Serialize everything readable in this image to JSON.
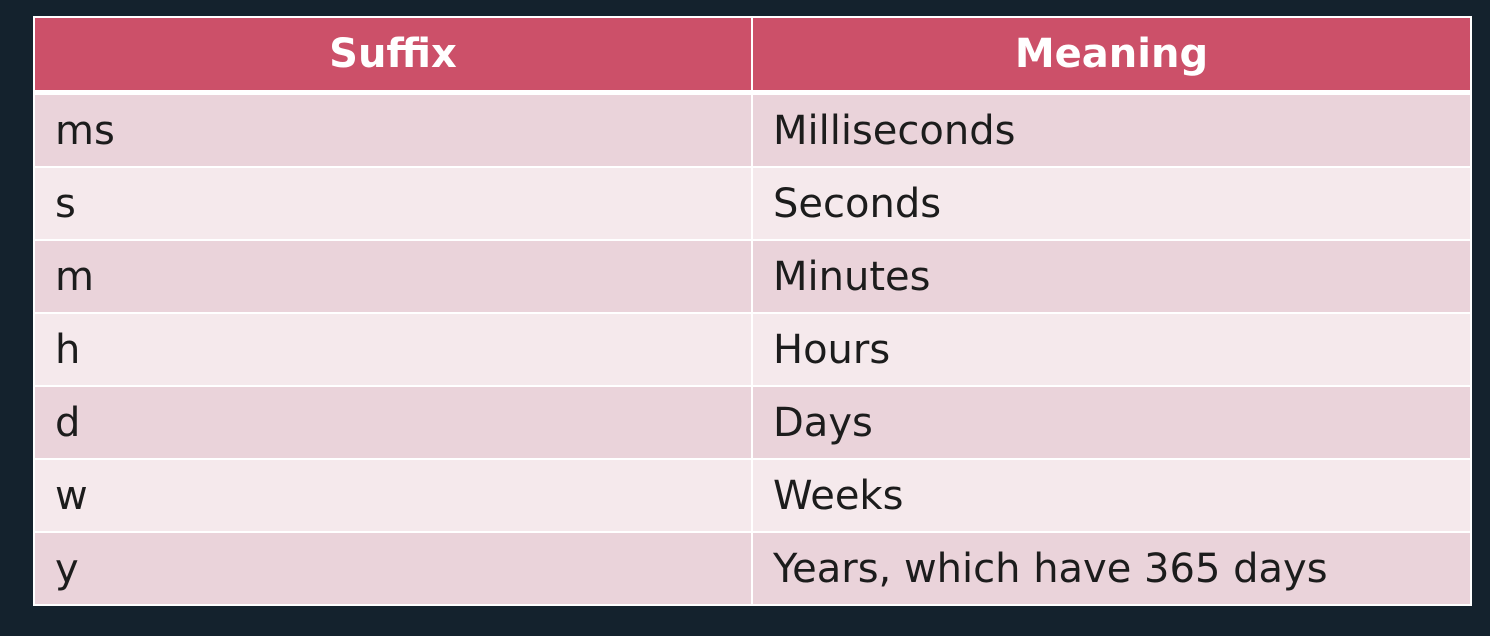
{
  "table": {
    "headers": [
      "Suffix",
      "Meaning"
    ],
    "rows": [
      [
        "ms",
        "Milliseconds"
      ],
      [
        "s",
        "Seconds"
      ],
      [
        "m",
        "Minutes"
      ],
      [
        "h",
        "Hours"
      ],
      [
        "d",
        "Days"
      ],
      [
        "w",
        "Weeks"
      ],
      [
        "y",
        "Years, which have 365 days"
      ]
    ]
  },
  "colors": {
    "header_background": "#cc5069",
    "row_odd": "#ead3da",
    "row_even": "#f5e9ec",
    "page_background": "#14222d"
  }
}
